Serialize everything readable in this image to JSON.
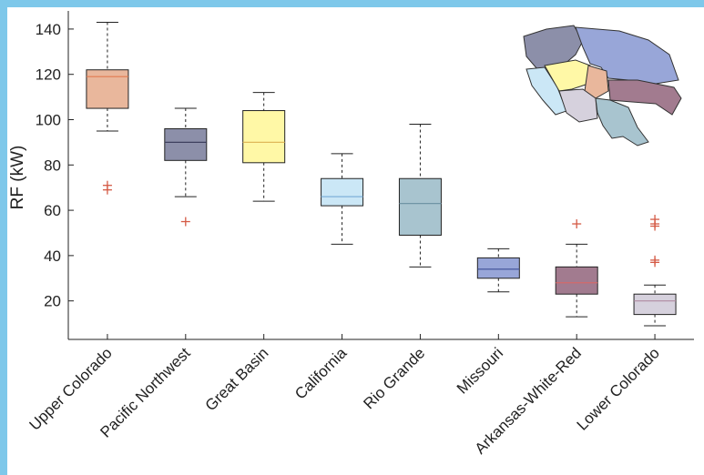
{
  "chart_data": {
    "type": "box",
    "title": "",
    "xlabel": "",
    "ylabel": "RF (kW)",
    "ylim": [
      3,
      148
    ],
    "yticks": [
      20,
      40,
      60,
      80,
      100,
      120,
      140
    ],
    "grid": false,
    "categories": [
      "Upper Colorado",
      "Pacific Northwest",
      "Great Basin",
      "California",
      "Rio Grande",
      "Missouri",
      "Arkansas-White-Red",
      "Lower Colorado"
    ],
    "boxes": [
      {
        "category": "Upper Colorado",
        "whisker_low": 95,
        "q1": 105,
        "median": 119,
        "q3": 122,
        "whisker_high": 143,
        "outliers": [
          69,
          71
        ],
        "color": "#e9b79c",
        "median_color": "#e27a4f"
      },
      {
        "category": "Pacific Northwest",
        "whisker_low": 66,
        "q1": 82,
        "median": 90,
        "q3": 96,
        "whisker_high": 105,
        "outliers": [
          55
        ],
        "color": "#8c8fa9",
        "median_color": "#3e405e"
      },
      {
        "category": "Great Basin",
        "whisker_low": 64,
        "q1": 81,
        "median": 90,
        "q3": 104,
        "whisker_high": 112,
        "outliers": [],
        "color": "#fff8a6",
        "median_color": "#e0b85a"
      },
      {
        "category": "California",
        "whisker_low": 45,
        "q1": 62,
        "median": 66,
        "q3": 74,
        "whisker_high": 85,
        "outliers": [],
        "color": "#cbe7f6",
        "median_color": "#7fb1d8"
      },
      {
        "category": "Rio Grande",
        "whisker_low": 35,
        "q1": 49,
        "median": 63,
        "q3": 74,
        "whisker_high": 98,
        "outliers": [],
        "color": "#a8c4cf",
        "median_color": "#6f95a6"
      },
      {
        "category": "Missouri",
        "whisker_low": 24,
        "q1": 30,
        "median": 34,
        "q3": 39,
        "whisker_high": 43,
        "outliers": [],
        "color": "#98a6d8",
        "median_color": "#3e4e96"
      },
      {
        "category": "Arkansas-White-Red",
        "whisker_low": 13,
        "q1": 23,
        "median": 28,
        "q3": 35,
        "whisker_high": 45,
        "outliers": [
          54
        ],
        "color": "#a27b8f",
        "median_color": "#d36a6a"
      },
      {
        "category": "Lower Colorado",
        "whisker_low": 9,
        "q1": 14,
        "median": 20,
        "q3": 23,
        "whisker_high": 27,
        "outliers": [
          37,
          38,
          53,
          54,
          56
        ],
        "color": "#d6d1dd",
        "median_color": "#b08aa0"
      }
    ],
    "outlier_color": "#d45a45"
  },
  "inset_map": {
    "regions": [
      {
        "name": "Pacific Northwest",
        "color": "#8c8fa9"
      },
      {
        "name": "Missouri",
        "color": "#98a6d8"
      },
      {
        "name": "California",
        "color": "#cbe7f6"
      },
      {
        "name": "Great Basin",
        "color": "#fff8a6"
      },
      {
        "name": "Upper Colorado",
        "color": "#e9b79c"
      },
      {
        "name": "Arkansas-White-Red",
        "color": "#a27b8f"
      },
      {
        "name": "Lower Colorado",
        "color": "#d6d1dd"
      },
      {
        "name": "Rio Grande",
        "color": "#a8c4cf"
      }
    ]
  }
}
